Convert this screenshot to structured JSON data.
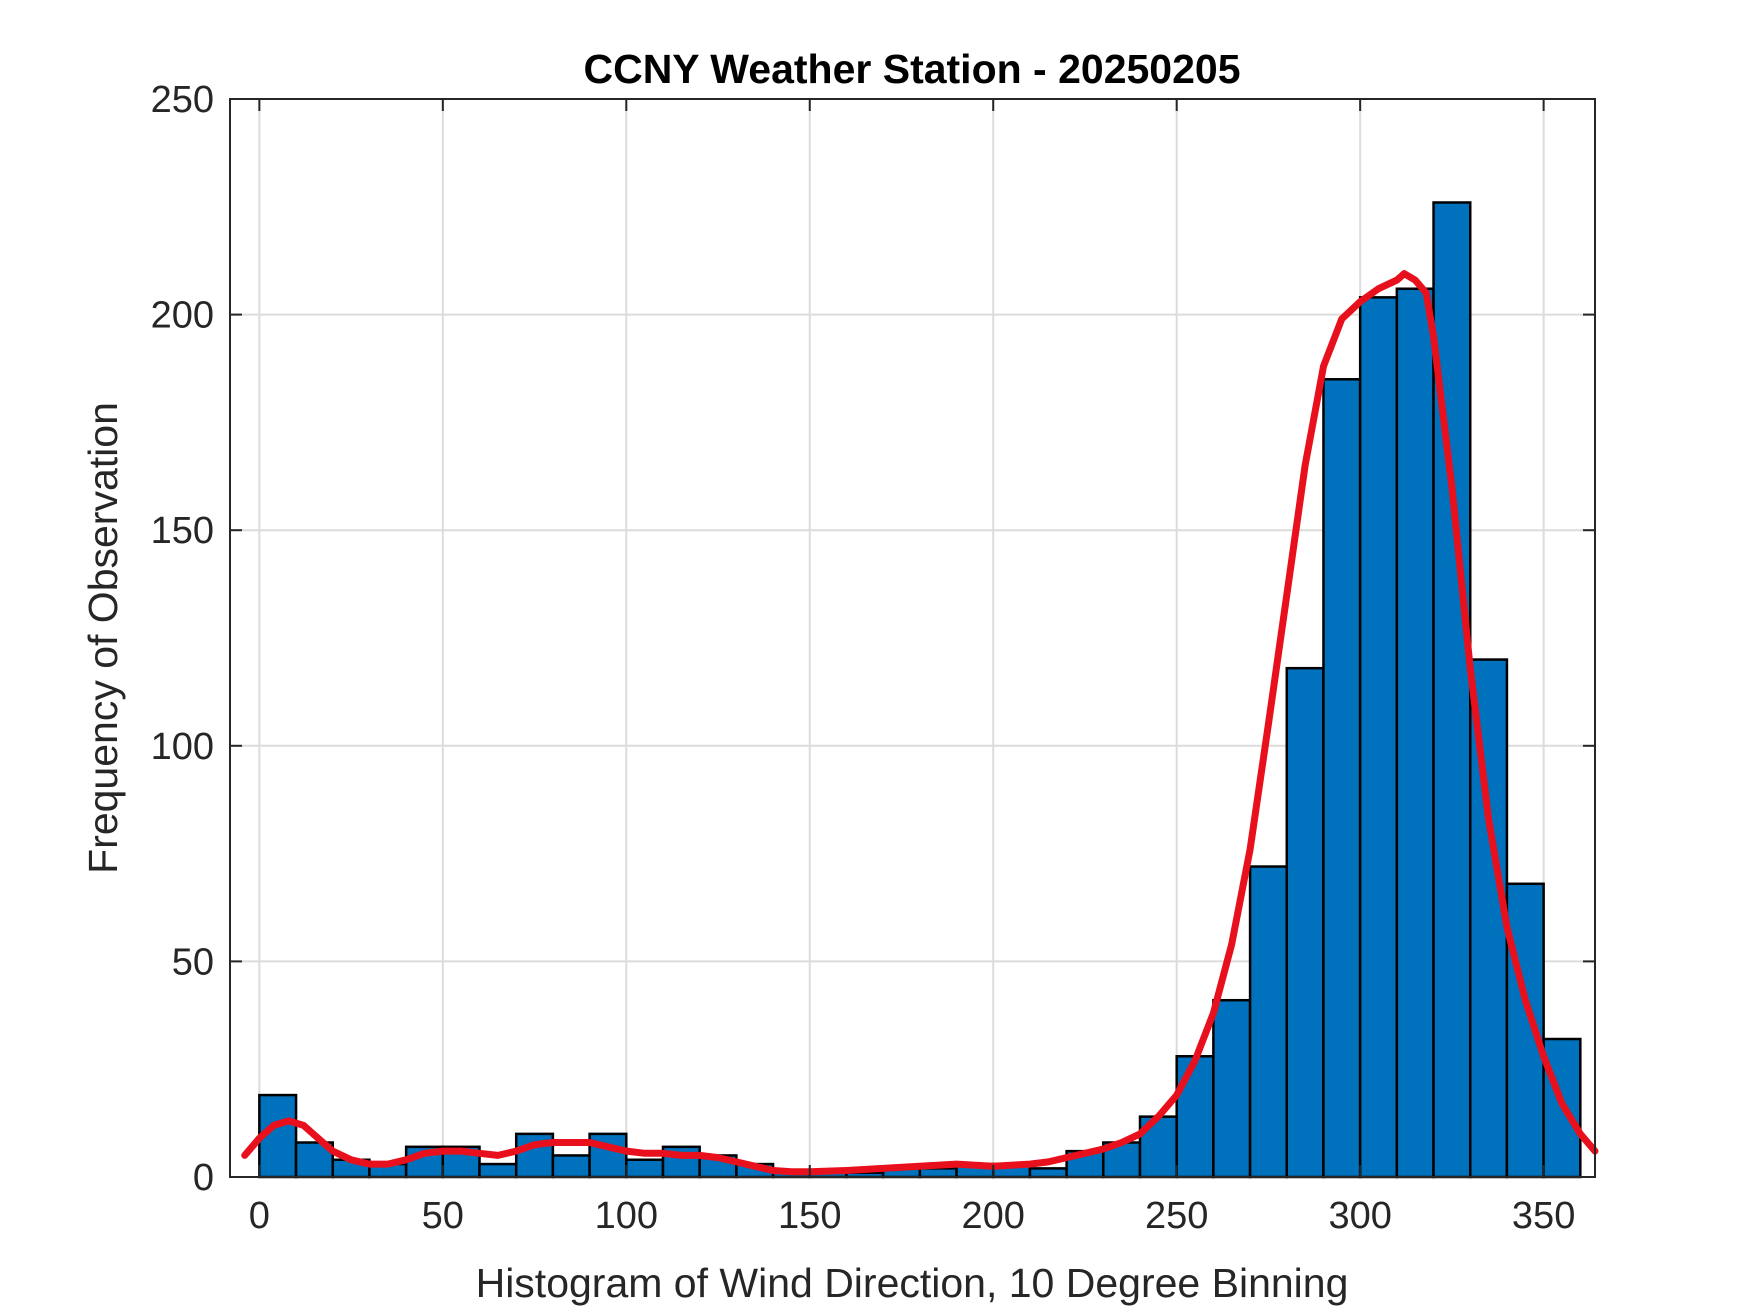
{
  "chart_data": {
    "type": "bar",
    "title": "CCNY Weather Station - 20250205",
    "xlabel": "Histogram of Wind Direction, 10 Degree Binning",
    "ylabel": "Frequency of Observation",
    "xlim": [
      -8,
      364
    ],
    "ylim": [
      0,
      250
    ],
    "xticks": [
      0,
      50,
      100,
      150,
      200,
      250,
      300,
      350
    ],
    "yticks": [
      0,
      50,
      100,
      150,
      200,
      250
    ],
    "grid": true,
    "bin_width": 10,
    "bin_starts": [
      0,
      10,
      20,
      30,
      40,
      50,
      60,
      70,
      80,
      90,
      100,
      110,
      120,
      130,
      140,
      150,
      160,
      170,
      180,
      190,
      200,
      210,
      220,
      230,
      240,
      250,
      260,
      270,
      280,
      290,
      300,
      310,
      320,
      330,
      340,
      350
    ],
    "values": [
      19,
      8,
      4,
      3,
      7,
      7,
      3,
      10,
      5,
      10,
      4,
      7,
      5,
      3,
      1,
      1,
      1,
      2,
      2,
      3,
      3,
      2,
      6,
      8,
      14,
      28,
      41,
      72,
      118,
      185,
      204,
      206,
      226,
      120,
      68,
      32
    ],
    "series": [
      {
        "name": "histogram",
        "kind": "bar",
        "color": "#0072BD",
        "edge_color": "#000000"
      },
      {
        "name": "density fit",
        "kind": "line",
        "color": "#E8101C",
        "x": [
          -4,
          0,
          4,
          8,
          12,
          16,
          20,
          25,
          30,
          35,
          40,
          45,
          50,
          55,
          60,
          65,
          70,
          75,
          80,
          85,
          90,
          95,
          100,
          105,
          110,
          115,
          120,
          125,
          130,
          135,
          140,
          145,
          150,
          160,
          170,
          180,
          190,
          200,
          210,
          215,
          220,
          225,
          230,
          235,
          240,
          245,
          250,
          255,
          260,
          265,
          270,
          275,
          280,
          285,
          290,
          295,
          300,
          305,
          310,
          312,
          315,
          318,
          320,
          325,
          330,
          335,
          340,
          345,
          350,
          355,
          360,
          364
        ],
        "y": [
          5,
          9,
          12,
          13,
          12,
          9,
          6,
          4,
          3,
          3,
          4,
          5.5,
          6,
          6,
          5.5,
          5,
          6,
          7.5,
          8,
          8,
          8,
          7,
          6,
          5.5,
          5.5,
          5,
          5,
          4.5,
          3.5,
          2.5,
          1.5,
          1.2,
          1.2,
          1.5,
          2,
          2.5,
          3,
          2.5,
          3,
          3.5,
          4.5,
          5.5,
          6.5,
          8,
          10,
          14,
          19,
          27,
          38,
          54,
          76,
          105,
          135,
          165,
          188,
          199,
          203,
          206,
          208,
          209.5,
          208,
          205,
          195,
          160,
          118,
          83,
          58,
          41,
          28,
          17,
          10,
          6
        ]
      }
    ]
  }
}
